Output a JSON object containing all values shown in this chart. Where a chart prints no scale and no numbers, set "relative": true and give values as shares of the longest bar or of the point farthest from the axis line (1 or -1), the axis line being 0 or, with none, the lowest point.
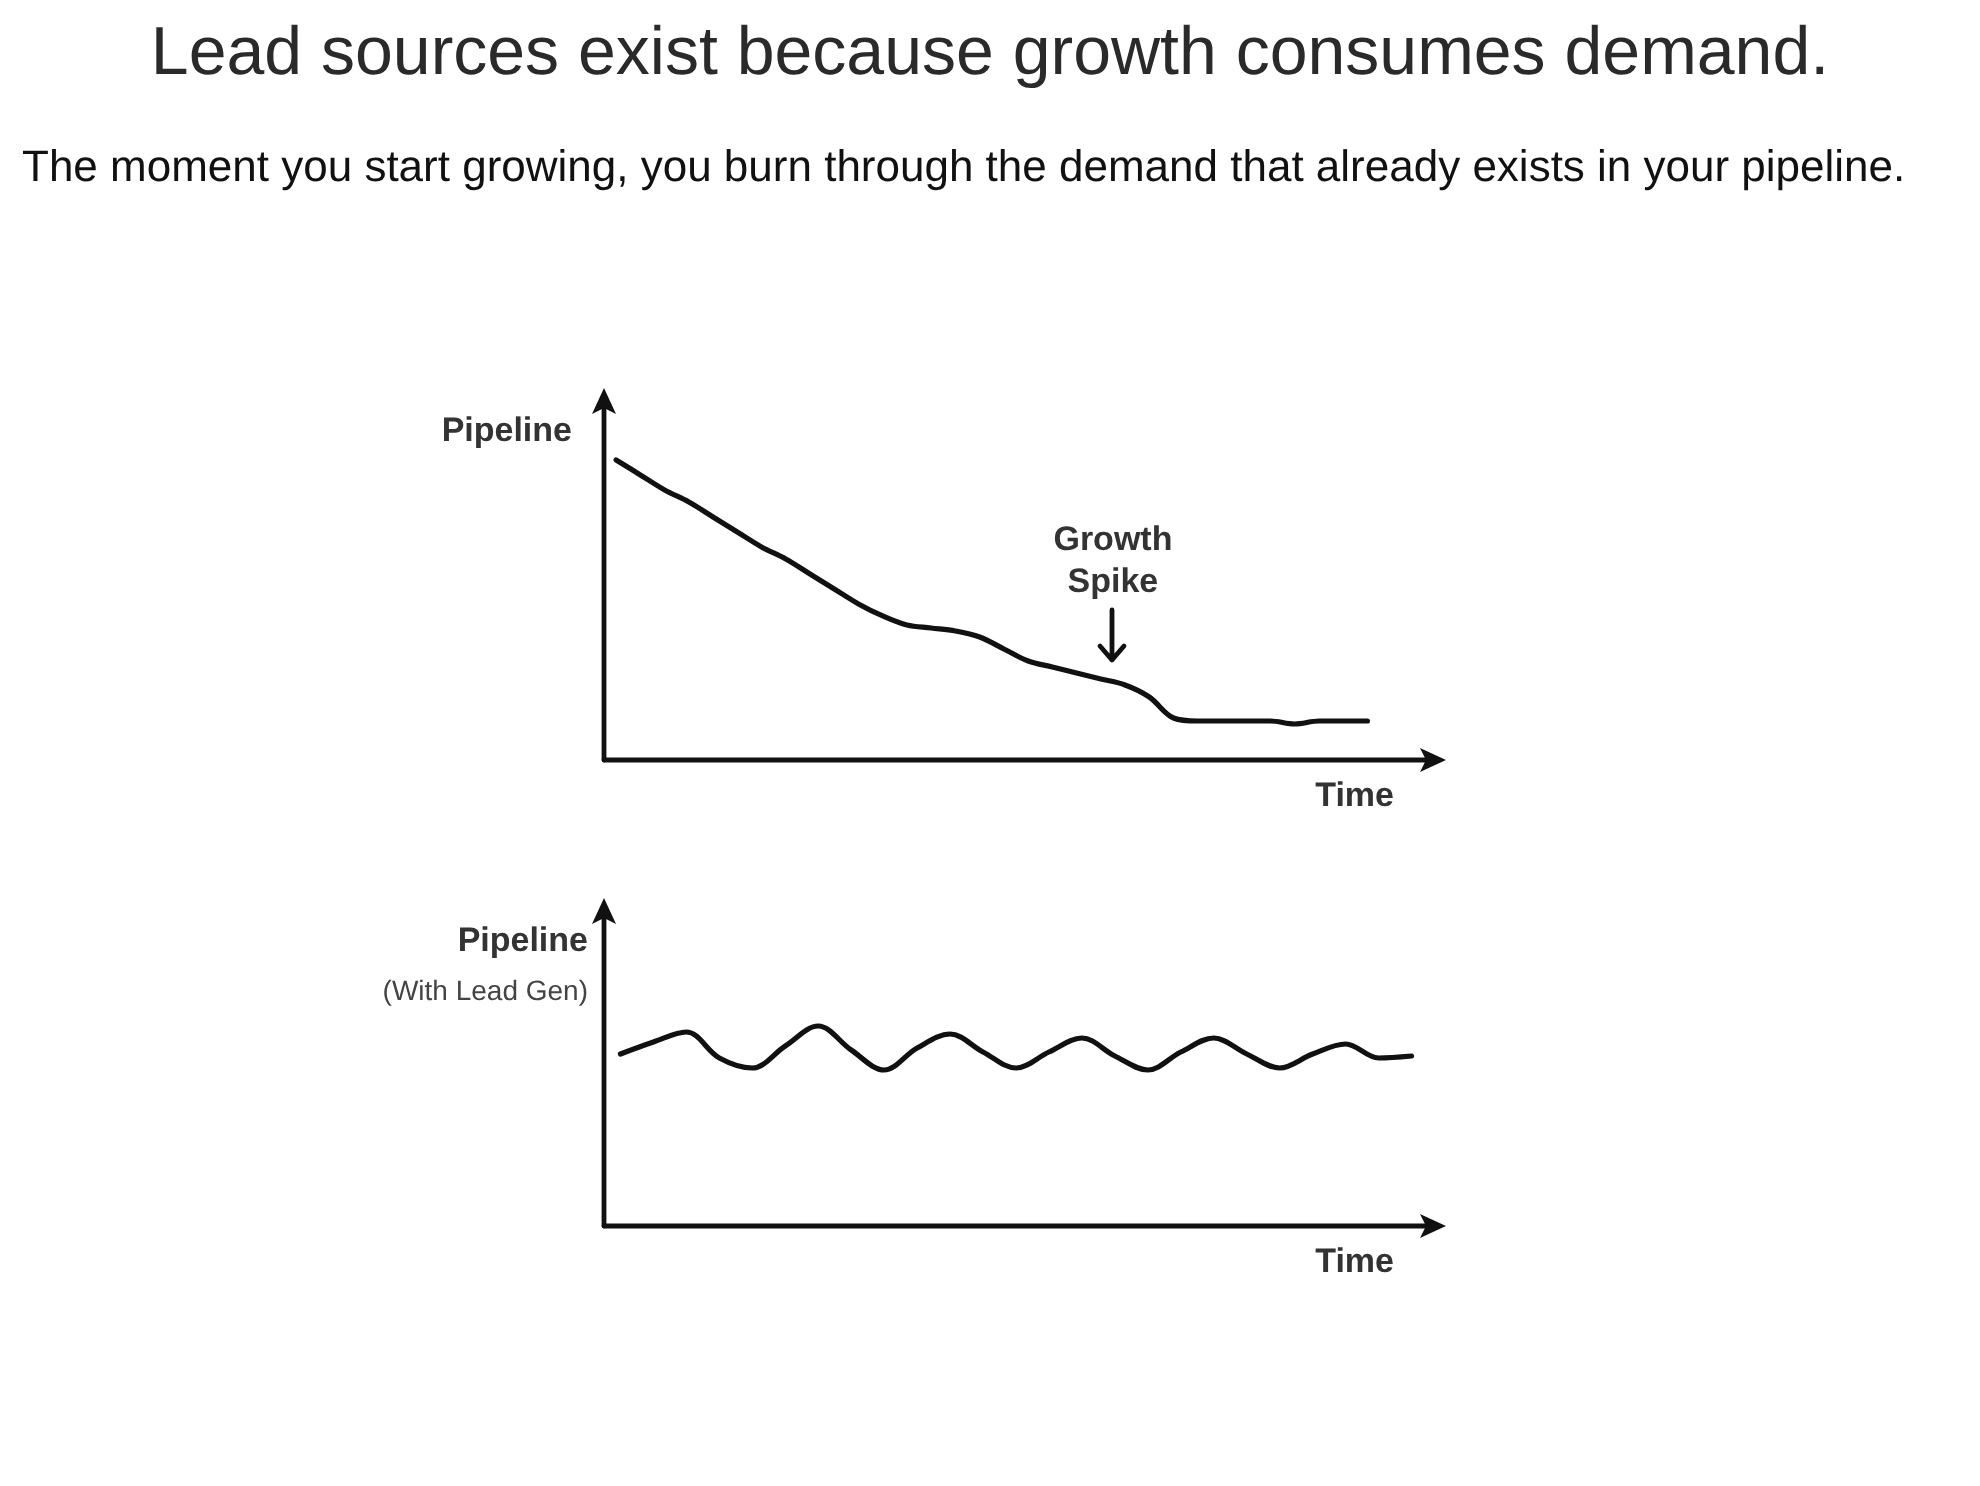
{
  "chart_data": [
    {
      "type": "line",
      "title": "Lead sources exist because growth consumes demand.",
      "subtitle": "The moment you start growing, you burn through the demand that already exists in your pipeline.",
      "xlabel": "Time",
      "ylabel": "Pipeline",
      "relative": true,
      "color": "#111111",
      "categories": [
        null,
        null,
        null,
        null,
        null,
        null,
        null,
        null,
        null,
        null,
        null,
        null,
        null,
        null,
        null,
        null,
        null,
        null,
        null,
        null,
        null,
        null,
        null,
        null,
        null,
        null,
        null,
        null,
        null,
        null,
        null,
        null,
        null,
        null
      ],
      "values": [
        1,
        0.95,
        0.9,
        0.86,
        0.81,
        0.76,
        0.71,
        0.67,
        0.62,
        0.57,
        0.52,
        0.48,
        0.45,
        0.44,
        0.43,
        0.41,
        0.37,
        0.33,
        0.31,
        0.29,
        0.27,
        0.25,
        0.21,
        0.14,
        0.13,
        0.13,
        0.13,
        0.13,
        0.12,
        0.13,
        0.13,
        0.13,
        null,
        null
      ],
      "annotations": [
        {
          "text": "Growth Spike",
          "y": 0.26
        }
      ]
    },
    {
      "type": "line",
      "xlabel": "Time",
      "ylabel": "Pipeline\n(With Lead Gen)",
      "relative": true,
      "color": "#111111",
      "categories": [
        null,
        null,
        null,
        null,
        null,
        null,
        null,
        null,
        null,
        null,
        null,
        null,
        null,
        null,
        null,
        null,
        null,
        null,
        null,
        null,
        null,
        null,
        null,
        null,
        null
      ],
      "values": [
        0.86,
        0.92,
        0.97,
        0.84,
        0.79,
        0.9,
        1,
        0.88,
        0.78,
        0.89,
        0.96,
        0.87,
        0.79,
        0.87,
        0.94,
        0.85,
        0.78,
        0.87,
        0.94,
        0.86,
        0.79,
        0.86,
        0.91,
        0.84,
        0.85
      ]
    }
  ]
}
